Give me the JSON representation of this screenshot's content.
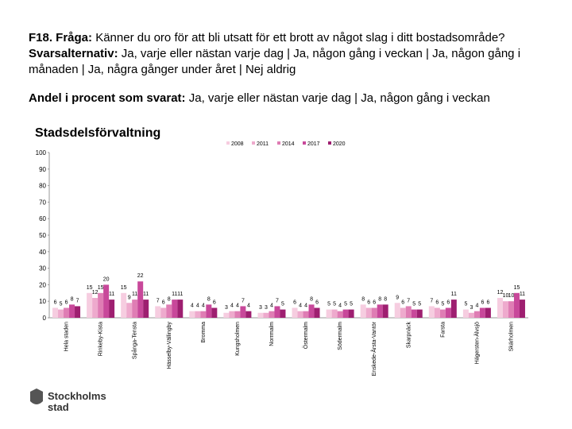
{
  "question_label": "F18. Fråga:",
  "question": "Känner du oro för att bli utsatt för ett brott av något slag i ditt bostadsområde?",
  "answer_label": "Svarsalternativ:",
  "answer": "Ja, varje eller nästan varje dag | Ja, någon gång i veckan | Ja, någon gång i månaden | Ja, några gånger under året | Nej aldrig",
  "measure_label": "Andel i procent som svarat:",
  "measure": "Ja, varje eller nästan varje dag | Ja, någon gång i veckan",
  "logo": [
    "Stockholms",
    "stad"
  ],
  "chart_data": {
    "type": "bar",
    "title": "Stadsdelsförvaltning",
    "categories": [
      "Hela staden",
      "Rinkeby-Kista",
      "Spånga-Tensta",
      "Hässelby-Vällingby",
      "Bromma",
      "Kungsholmen",
      "Norrmalm",
      "Östermalm",
      "Södermalm",
      "Enskede-Årsta-Vantör",
      "Skarpnäck",
      "Farsta",
      "Hägersten-Älvsjö",
      "Skärholmen"
    ],
    "series": [
      {
        "name": "2008",
        "color": "#f6cde0",
        "values": [
          6,
          15,
          15,
          7,
          4,
          3,
          3,
          6,
          5,
          8,
          9,
          7,
          5,
          12
        ]
      },
      {
        "name": "2011",
        "color": "#eeaacd",
        "values": [
          5,
          12,
          9,
          6,
          4,
          4,
          3,
          4,
          5,
          6,
          6,
          6,
          3,
          10
        ]
      },
      {
        "name": "2014",
        "color": "#df7db4",
        "values": [
          6,
          15,
          11,
          8,
          4,
          4,
          4,
          4,
          4,
          6,
          7,
          5,
          4,
          10
        ]
      },
      {
        "name": "2017",
        "color": "#c8489a",
        "values": [
          8,
          20,
          22,
          11,
          8,
          7,
          7,
          8,
          5,
          8,
          5,
          6,
          6,
          15
        ]
      },
      {
        "name": "2020",
        "color": "#9e1f70",
        "values": [
          7,
          11,
          11,
          11,
          6,
          4,
          5,
          6,
          5,
          8,
          5,
          11,
          6,
          11
        ]
      }
    ],
    "ylim": [
      0,
      100
    ],
    "yticks": [
      0,
      10,
      20,
      30,
      40,
      50,
      60,
      70,
      80,
      90,
      100
    ],
    "grid": false,
    "legend": "top"
  }
}
